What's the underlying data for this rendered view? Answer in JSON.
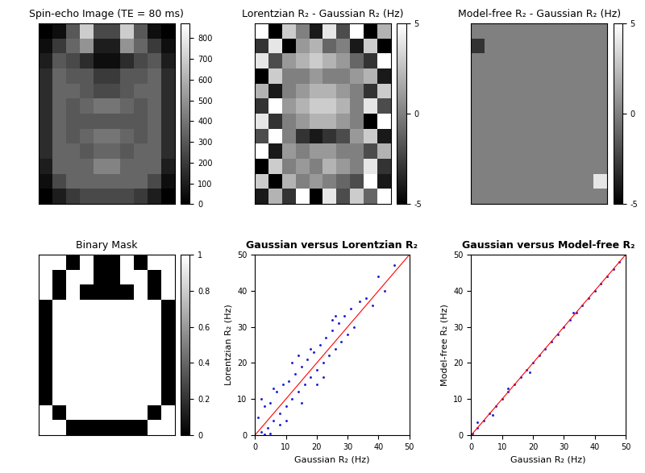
{
  "chart_data": [
    {
      "type": "heatmap",
      "title": "Spin-echo Image (TE = 80 ms)",
      "tick_labels": false,
      "color": "gray",
      "cells": [
        [
          0,
          50,
          300,
          700,
          250,
          250,
          700,
          300,
          50,
          0
        ],
        [
          50,
          200,
          350,
          500,
          100,
          100,
          500,
          350,
          200,
          50
        ],
        [
          100,
          300,
          250,
          150,
          50,
          50,
          150,
          250,
          300,
          100
        ],
        [
          150,
          350,
          300,
          300,
          200,
          200,
          300,
          300,
          350,
          150
        ],
        [
          150,
          350,
          350,
          300,
          250,
          250,
          300,
          350,
          350,
          150
        ],
        [
          150,
          350,
          300,
          350,
          400,
          400,
          350,
          300,
          350,
          150
        ],
        [
          150,
          350,
          300,
          300,
          300,
          300,
          300,
          300,
          350,
          150
        ],
        [
          150,
          350,
          300,
          350,
          400,
          400,
          350,
          300,
          350,
          150
        ],
        [
          150,
          350,
          350,
          300,
          350,
          350,
          300,
          350,
          350,
          150
        ],
        [
          100,
          350,
          350,
          350,
          450,
          450,
          350,
          350,
          350,
          100
        ],
        [
          50,
          250,
          350,
          350,
          350,
          350,
          350,
          350,
          250,
          50
        ],
        [
          0,
          100,
          200,
          250,
          250,
          250,
          250,
          200,
          100,
          0
        ]
      ],
      "colorbar": {
        "range": [
          0,
          870
        ],
        "ticks": [
          0,
          100,
          200,
          300,
          400,
          500,
          600,
          700,
          800
        ]
      }
    },
    {
      "type": "heatmap",
      "title": "Lorentzian R₂ - Gaussian R₂ (Hz)",
      "tick_labels": false,
      "color": "gray",
      "cells": [
        [
          5,
          -5,
          3,
          0,
          -4,
          4,
          -2,
          5,
          -5,
          2
        ],
        [
          -3,
          4,
          -5,
          1,
          2,
          -1,
          0,
          -4,
          3,
          -5
        ],
        [
          4,
          -2,
          1,
          2,
          3,
          2,
          1,
          -1,
          -3,
          5
        ],
        [
          -5,
          3,
          0,
          0,
          1,
          0,
          0,
          1,
          2,
          -4
        ],
        [
          2,
          -4,
          0,
          1,
          2,
          2,
          1,
          0,
          -3,
          3
        ],
        [
          -3,
          5,
          1,
          2,
          3,
          3,
          2,
          0,
          4,
          -2
        ],
        [
          4,
          -3,
          0,
          1,
          2,
          2,
          1,
          0,
          -5,
          5
        ],
        [
          -2,
          5,
          0,
          -3,
          -4,
          -3,
          -2,
          1,
          3,
          -4
        ],
        [
          5,
          -4,
          1,
          0,
          1,
          1,
          0,
          0,
          -2,
          2
        ],
        [
          -5,
          3,
          0,
          1,
          0,
          2,
          1,
          0,
          4,
          -3
        ],
        [
          3,
          -5,
          2,
          0,
          1,
          0,
          -1,
          -2,
          5,
          -4
        ],
        [
          -4,
          2,
          -3,
          5,
          -5,
          4,
          -2,
          3,
          -1,
          5
        ]
      ],
      "colorbar": {
        "range": [
          -5,
          5
        ],
        "ticks": [
          -5,
          0,
          5
        ]
      }
    },
    {
      "type": "heatmap",
      "title": "Model-free R₂ - Gaussian R₂ (Hz)",
      "tick_labels": false,
      "color": "gray",
      "cells": [
        [
          0,
          0,
          0,
          0,
          0,
          0,
          0,
          0,
          0,
          0
        ],
        [
          -3,
          0,
          0,
          0,
          0,
          0,
          0,
          0,
          0,
          0
        ],
        [
          0,
          0,
          0,
          0,
          0,
          0,
          0,
          0,
          0,
          0
        ],
        [
          0,
          0,
          0,
          0,
          0,
          0,
          0,
          0,
          0,
          0
        ],
        [
          0,
          0,
          0,
          0,
          0,
          0,
          0,
          0,
          0,
          0
        ],
        [
          0,
          0,
          0,
          0,
          0,
          0,
          0,
          0,
          0,
          0
        ],
        [
          0,
          0,
          0,
          0,
          0,
          0,
          0,
          0,
          0,
          0
        ],
        [
          0,
          0,
          0,
          0,
          0,
          0,
          0,
          0,
          0,
          0
        ],
        [
          0,
          0,
          0,
          0,
          0,
          0,
          0,
          0,
          0,
          0
        ],
        [
          0,
          0,
          0,
          0,
          0,
          0,
          0,
          0,
          0,
          0
        ],
        [
          0,
          0,
          0,
          0,
          0,
          0,
          0,
          0,
          0,
          4
        ],
        [
          0,
          0,
          0,
          0,
          0,
          0,
          0,
          0,
          0,
          0
        ]
      ],
      "colorbar": {
        "range": [
          -5,
          5
        ],
        "ticks": [
          -5,
          0,
          5
        ]
      }
    },
    {
      "type": "heatmap",
      "title": "Binary Mask",
      "tick_labels": false,
      "color": "gray",
      "cells": [
        [
          1,
          1,
          0,
          1,
          0,
          0,
          1,
          0,
          1,
          1
        ],
        [
          1,
          0,
          1,
          1,
          0,
          0,
          1,
          1,
          0,
          1
        ],
        [
          1,
          0,
          1,
          0,
          0,
          0,
          0,
          1,
          0,
          1
        ],
        [
          0,
          1,
          1,
          1,
          1,
          1,
          1,
          1,
          1,
          0
        ],
        [
          0,
          1,
          1,
          1,
          1,
          1,
          1,
          1,
          1,
          0
        ],
        [
          0,
          1,
          1,
          1,
          1,
          1,
          1,
          1,
          1,
          0
        ],
        [
          0,
          1,
          1,
          1,
          1,
          1,
          1,
          1,
          1,
          0
        ],
        [
          0,
          1,
          1,
          1,
          1,
          1,
          1,
          1,
          1,
          0
        ],
        [
          0,
          1,
          1,
          1,
          1,
          1,
          1,
          1,
          1,
          0
        ],
        [
          0,
          1,
          1,
          1,
          1,
          1,
          1,
          1,
          1,
          0
        ],
        [
          1,
          0,
          1,
          1,
          1,
          1,
          1,
          1,
          0,
          1
        ],
        [
          1,
          1,
          0,
          0,
          0,
          0,
          0,
          0,
          1,
          1
        ]
      ],
      "colorbar": {
        "range": [
          0,
          1
        ],
        "ticks": [
          0,
          0.2,
          0.4,
          0.6,
          0.8,
          1
        ]
      }
    },
    {
      "type": "scatter",
      "title": "Gaussian versus Lorentzian R₂",
      "x_label": "Gaussian R₂ (Hz)",
      "y_label": "Lorentzian R₂ (Hz)",
      "color": "#1f1fd0",
      "marker": "point",
      "x": [
        1,
        2,
        3,
        4,
        5,
        6,
        7,
        8,
        9,
        10,
        11,
        12,
        13,
        14,
        15,
        16,
        17,
        18,
        19,
        20,
        21,
        22,
        23,
        24,
        25,
        26,
        27,
        28,
        29,
        30,
        31,
        32,
        34,
        36,
        38,
        40,
        42,
        45,
        2,
        5,
        8,
        12,
        15,
        18,
        22,
        26,
        3,
        6,
        10,
        14,
        20,
        25
      ],
      "y": [
        5,
        1,
        8,
        2,
        9,
        4,
        12,
        6,
        14,
        8,
        15,
        10,
        17,
        12,
        19,
        14,
        21,
        16,
        23,
        18,
        25,
        20,
        27,
        22,
        29,
        24,
        31,
        26,
        33,
        28,
        35,
        30,
        37,
        38,
        36,
        44,
        40,
        47,
        10,
        0.5,
        3,
        20,
        9,
        24,
        16,
        33,
        0.2,
        13,
        4,
        22,
        14,
        32
      ],
      "xlim": [
        0,
        50
      ],
      "ylim": [
        0,
        50
      ],
      "xticks": [
        0,
        10,
        20,
        30,
        40,
        50
      ],
      "yticks": [
        0,
        10,
        20,
        30,
        40,
        50
      ],
      "line": {
        "x": [
          0,
          50
        ],
        "y": [
          0,
          50
        ],
        "color": "#ff0000"
      }
    },
    {
      "type": "scatter",
      "title": "Gaussian versus Model-free R₂",
      "x_label": "Gaussian R₂ (Hz)",
      "y_label": "Model-free R₂ (Hz)",
      "color": "#1f1fd0",
      "marker": "point",
      "x": [
        0.5,
        2,
        4,
        6,
        8,
        10,
        12,
        14,
        16,
        18,
        20,
        22,
        24,
        26,
        28,
        30,
        32,
        34,
        36,
        38,
        40,
        42,
        44,
        46,
        48,
        50,
        2,
        7,
        12,
        19,
        33
      ],
      "y": [
        0.5,
        2,
        4,
        6,
        8,
        10,
        12,
        14,
        16,
        18,
        20,
        22,
        24,
        26,
        28,
        30,
        32,
        34,
        36,
        38,
        40,
        42,
        44,
        46,
        48,
        50,
        3.5,
        5.5,
        13,
        17.5,
        34
      ],
      "xlim": [
        0,
        50
      ],
      "ylim": [
        0,
        50
      ],
      "xticks": [
        0,
        10,
        20,
        30,
        40,
        50
      ],
      "yticks": [
        0,
        10,
        20,
        30,
        40,
        50
      ],
      "line": {
        "x": [
          0,
          50
        ],
        "y": [
          0,
          50
        ],
        "color": "#ff0000"
      }
    }
  ]
}
